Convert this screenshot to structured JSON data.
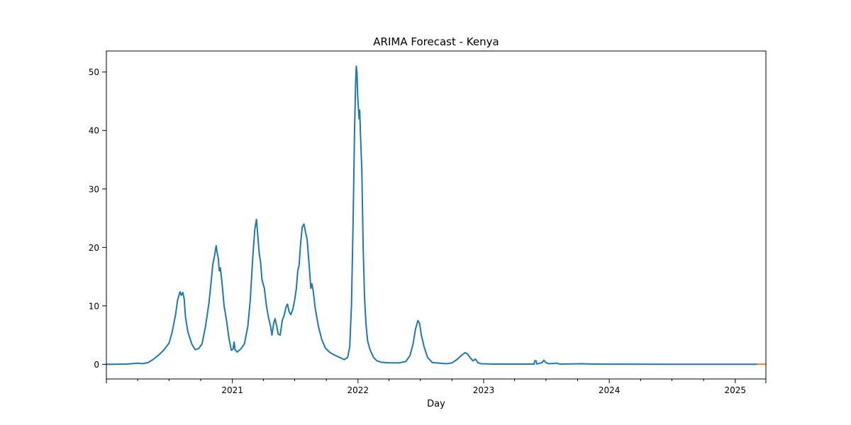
{
  "chart_data": {
    "type": "line",
    "title": "ARIMA Forecast - Kenya",
    "xlabel": "Day",
    "ylabel": "",
    "xlim": [
      "2020-01-01",
      "2025-03-31"
    ],
    "ylim": [
      -2.5,
      53.6
    ],
    "grid": false,
    "x_ticks": [
      {
        "date": "2021-01-01",
        "label": "2021"
      },
      {
        "date": "2022-01-01",
        "label": "2022"
      },
      {
        "date": "2023-01-01",
        "label": "2023"
      },
      {
        "date": "2024-01-01",
        "label": "2024"
      },
      {
        "date": "2025-01-01",
        "label": "2025"
      }
    ],
    "y_ticks": [
      0,
      10,
      20,
      30,
      40,
      50
    ],
    "series": [
      {
        "color": "#1f77b4",
        "points": [
          [
            "2020-01-01",
            0
          ],
          [
            "2020-03-01",
            0.05
          ],
          [
            "2020-04-01",
            0.2
          ],
          [
            "2020-04-15",
            0.1
          ],
          [
            "2020-05-01",
            0.3
          ],
          [
            "2020-05-15",
            0.8
          ],
          [
            "2020-06-01",
            1.6
          ],
          [
            "2020-06-15",
            2.4
          ],
          [
            "2020-07-01",
            3.6
          ],
          [
            "2020-07-10",
            5.5
          ],
          [
            "2020-07-20",
            8.5
          ],
          [
            "2020-07-26",
            11.0
          ],
          [
            "2020-08-02",
            12.4
          ],
          [
            "2020-08-06",
            11.8
          ],
          [
            "2020-08-10",
            12.3
          ],
          [
            "2020-08-14",
            11.2
          ],
          [
            "2020-08-18",
            8.0
          ],
          [
            "2020-08-25",
            5.5
          ],
          [
            "2020-09-05",
            3.5
          ],
          [
            "2020-09-15",
            2.5
          ],
          [
            "2020-09-25",
            2.7
          ],
          [
            "2020-10-05",
            3.5
          ],
          [
            "2020-10-15",
            6.5
          ],
          [
            "2020-10-25",
            10.5
          ],
          [
            "2020-11-01",
            14.5
          ],
          [
            "2020-11-05",
            17.0
          ],
          [
            "2020-11-10",
            18.5
          ],
          [
            "2020-11-15",
            20.3
          ],
          [
            "2020-11-18",
            19.0
          ],
          [
            "2020-11-21",
            18.2
          ],
          [
            "2020-11-24",
            16.0
          ],
          [
            "2020-11-27",
            16.5
          ],
          [
            "2020-12-01",
            14.5
          ],
          [
            "2020-12-08",
            10.0
          ],
          [
            "2020-12-15",
            7.5
          ],
          [
            "2020-12-22",
            4.5
          ],
          [
            "2020-12-29",
            2.4
          ],
          [
            "2021-01-03",
            2.6
          ],
          [
            "2021-01-06",
            3.8
          ],
          [
            "2021-01-09",
            2.5
          ],
          [
            "2021-01-15",
            2.1
          ],
          [
            "2021-01-25",
            2.6
          ],
          [
            "2021-02-05",
            3.5
          ],
          [
            "2021-02-15",
            6.5
          ],
          [
            "2021-02-22",
            11.0
          ],
          [
            "2021-03-01",
            18.0
          ],
          [
            "2021-03-07",
            23.0
          ],
          [
            "2021-03-12",
            24.8
          ],
          [
            "2021-03-16",
            22.0
          ],
          [
            "2021-03-20",
            19.0
          ],
          [
            "2021-03-24",
            17.5
          ],
          [
            "2021-03-28",
            14.5
          ],
          [
            "2021-04-04",
            13.0
          ],
          [
            "2021-04-10",
            10.0
          ],
          [
            "2021-04-16",
            8.0
          ],
          [
            "2021-04-22",
            6.5
          ],
          [
            "2021-04-26",
            5.0
          ],
          [
            "2021-05-01",
            7.0
          ],
          [
            "2021-05-05",
            7.8
          ],
          [
            "2021-05-10",
            6.5
          ],
          [
            "2021-05-14",
            5.2
          ],
          [
            "2021-05-20",
            5.0
          ],
          [
            "2021-05-26",
            7.5
          ],
          [
            "2021-06-01",
            8.5
          ],
          [
            "2021-06-06",
            9.8
          ],
          [
            "2021-06-10",
            10.3
          ],
          [
            "2021-06-15",
            9.0
          ],
          [
            "2021-06-20",
            8.5
          ],
          [
            "2021-06-26",
            9.5
          ],
          [
            "2021-07-01",
            11.0
          ],
          [
            "2021-07-06",
            13.0
          ],
          [
            "2021-07-10",
            16.0
          ],
          [
            "2021-07-14",
            17.0
          ],
          [
            "2021-07-18",
            20.5
          ],
          [
            "2021-07-23",
            23.5
          ],
          [
            "2021-07-28",
            24.0
          ],
          [
            "2021-08-02",
            22.5
          ],
          [
            "2021-08-06",
            21.5
          ],
          [
            "2021-08-10",
            18.5
          ],
          [
            "2021-08-14",
            15.5
          ],
          [
            "2021-08-17",
            13.0
          ],
          [
            "2021-08-20",
            13.8
          ],
          [
            "2021-08-24",
            12.5
          ],
          [
            "2021-08-30",
            9.5
          ],
          [
            "2021-09-08",
            6.5
          ],
          [
            "2021-09-18",
            4.2
          ],
          [
            "2021-09-28",
            2.8
          ],
          [
            "2021-10-12",
            2.0
          ],
          [
            "2021-10-28",
            1.5
          ],
          [
            "2021-11-12",
            1.1
          ],
          [
            "2021-11-22",
            0.8
          ],
          [
            "2021-12-02",
            1.2
          ],
          [
            "2021-12-08",
            3.0
          ],
          [
            "2021-12-13",
            10.0
          ],
          [
            "2021-12-18",
            25.0
          ],
          [
            "2021-12-22",
            40.0
          ],
          [
            "2021-12-25",
            48.0
          ],
          [
            "2021-12-27",
            51.0
          ],
          [
            "2021-12-29",
            50.0
          ],
          [
            "2021-12-31",
            46.0
          ],
          [
            "2022-01-02",
            44.0
          ],
          [
            "2022-01-04",
            42.0
          ],
          [
            "2022-01-06",
            43.5
          ],
          [
            "2022-01-09",
            38.0
          ],
          [
            "2022-01-12",
            33.5
          ],
          [
            "2022-01-16",
            20.0
          ],
          [
            "2022-01-20",
            11.5
          ],
          [
            "2022-01-24",
            7.0
          ],
          [
            "2022-01-29",
            4.0
          ],
          [
            "2022-02-05",
            2.5
          ],
          [
            "2022-02-15",
            1.2
          ],
          [
            "2022-02-25",
            0.6
          ],
          [
            "2022-03-10",
            0.35
          ],
          [
            "2022-04-01",
            0.25
          ],
          [
            "2022-05-01",
            0.25
          ],
          [
            "2022-05-20",
            0.5
          ],
          [
            "2022-06-01",
            1.5
          ],
          [
            "2022-06-10",
            3.5
          ],
          [
            "2022-06-17",
            6.0
          ],
          [
            "2022-06-24",
            7.5
          ],
          [
            "2022-06-29",
            7.0
          ],
          [
            "2022-07-04",
            5.0
          ],
          [
            "2022-07-12",
            3.0
          ],
          [
            "2022-07-22",
            1.2
          ],
          [
            "2022-08-05",
            0.3
          ],
          [
            "2022-09-15",
            0.1
          ],
          [
            "2022-10-01",
            0.25
          ],
          [
            "2022-10-15",
            0.8
          ],
          [
            "2022-10-28",
            1.5
          ],
          [
            "2022-11-08",
            2.0
          ],
          [
            "2022-11-15",
            1.8
          ],
          [
            "2022-11-22",
            1.2
          ],
          [
            "2022-12-01",
            0.6
          ],
          [
            "2022-12-08",
            0.9
          ],
          [
            "2022-12-15",
            0.3
          ],
          [
            "2022-12-25",
            0.1
          ],
          [
            "2023-02-01",
            0.05
          ],
          [
            "2023-04-01",
            0.05
          ],
          [
            "2023-05-01",
            0.05
          ],
          [
            "2023-05-28",
            0.05
          ],
          [
            "2023-05-29",
            0.6
          ],
          [
            "2023-06-03",
            0.6
          ],
          [
            "2023-06-04",
            0.05
          ],
          [
            "2023-06-20",
            0.3
          ],
          [
            "2023-06-25",
            0.7
          ],
          [
            "2023-07-01",
            0.3
          ],
          [
            "2023-07-10",
            0.1
          ],
          [
            "2023-08-01",
            0.2
          ],
          [
            "2023-08-10",
            0.05
          ],
          [
            "2023-10-15",
            0.1
          ],
          [
            "2023-11-15",
            0.05
          ],
          [
            "2024-01-01",
            0.03
          ],
          [
            "2024-06-01",
            0.02
          ],
          [
            "2025-01-01",
            0.02
          ],
          [
            "2025-03-06",
            0.02
          ]
        ]
      },
      {
        "color": "#ff7f0e",
        "points": [
          [
            "2025-03-06",
            0.02
          ],
          [
            "2025-03-31",
            0.02
          ]
        ]
      }
    ]
  }
}
